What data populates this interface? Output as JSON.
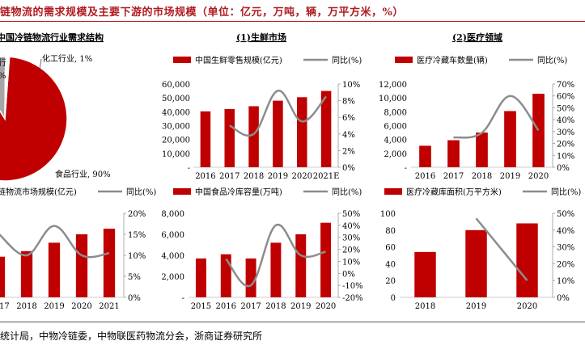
{
  "title": "链物流的需求规模及主要下游的市场规模（单位：亿元，万吨，辆，万平方米，%）",
  "source": "统计局，中物冷链委，中物联医药物流分会，浙商证券研究所",
  "colors": {
    "bar": "#c00000",
    "line": "#8c8c8c",
    "pie_small": "#a6a6a6",
    "title": "#b01c22"
  },
  "chart_data": [
    {
      "id": "pie",
      "type": "pie",
      "title": "中国冷链物流行业需求结构",
      "slices": [
        {
          "label": "食品行业, 90%",
          "value": 90,
          "color": "#c00000"
        },
        {
          "label": "化工行业, 1%",
          "value": 1,
          "color": "#ffffff"
        },
        {
          "label": "行",
          "value": 9,
          "color": "#a6a6a6"
        }
      ],
      "extra_labels": [
        "%"
      ]
    },
    {
      "id": "fresh",
      "type": "bar",
      "title": "(1)生鲜市场",
      "categories": [
        "2016",
        "2017",
        "2018",
        "2019",
        "2020",
        "2021E"
      ],
      "series": [
        {
          "name": "中国生鲜零售规模(亿元)",
          "type": "bar",
          "axis": "left",
          "values": [
            40300,
            42000,
            44000,
            48000,
            50500,
            55000
          ]
        },
        {
          "name": "同比(%)",
          "type": "line",
          "axis": "right",
          "values": [
            null,
            5,
            4,
            9.2,
            5.5,
            8.5
          ]
        }
      ],
      "ylim": [
        0,
        60000
      ],
      "yticks": [
        "-",
        "10,000",
        "20,000",
        "30,000",
        "40,000",
        "50,000",
        "60,000"
      ],
      "y2lim": [
        0,
        10
      ],
      "y2ticks": [
        "0%",
        "2%",
        "4%",
        "6%",
        "8%",
        "10%"
      ]
    },
    {
      "id": "medical",
      "type": "bar",
      "title": "(2)医疗领域",
      "categories": [
        "2016",
        "2017",
        "2018",
        "2019",
        "2020"
      ],
      "series": [
        {
          "name": "医疗冷藏车数量(辆)",
          "type": "bar",
          "axis": "left",
          "values": [
            3100,
            3900,
            5000,
            8100,
            10600
          ]
        },
        {
          "name": "同比(%)",
          "type": "line",
          "axis": "right",
          "values": [
            null,
            25,
            29,
            60,
            31
          ]
        }
      ],
      "ylim": [
        0,
        12000
      ],
      "yticks": [
        "-",
        "2,000",
        "4,000",
        "6,000",
        "8,000",
        "10,000",
        "12,000"
      ],
      "y2lim": [
        0,
        70
      ],
      "y2ticks": [
        "0%",
        "10%",
        "20%",
        "30%",
        "40%",
        "50%",
        "60%",
        "70%"
      ]
    },
    {
      "id": "coldchain",
      "type": "bar",
      "title": "",
      "categories": [
        "2017",
        "2018",
        "2019",
        "2020",
        "2021"
      ],
      "series": [
        {
          "name": "链物流市场规模(亿元)",
          "type": "bar",
          "axis": "left",
          "values": [
            2900,
            3300,
            3900,
            4500,
            4900
          ]
        },
        {
          "name": "同比(%)",
          "type": "line",
          "axis": "right",
          "values": [
            15,
            10,
            17,
            10,
            10.5
          ]
        }
      ],
      "ylim": [
        0,
        6000
      ],
      "y2lim": [
        0,
        20
      ],
      "y2ticks": [
        "0%",
        "5%",
        "10%",
        "15%",
        "20%"
      ]
    },
    {
      "id": "foodcold",
      "type": "bar",
      "title": "",
      "categories": [
        "2015",
        "2016",
        "2017",
        "2018",
        "2019",
        "2020"
      ],
      "series": [
        {
          "name": "中国食品冷库容量(万吨)",
          "type": "bar",
          "axis": "left",
          "values": [
            3700,
            4100,
            3700,
            5200,
            6000,
            7100
          ]
        },
        {
          "name": "同比(%)",
          "type": "line",
          "axis": "right",
          "values": [
            null,
            12,
            -10,
            40,
            15,
            18
          ]
        }
      ],
      "ylim": [
        0,
        8000
      ],
      "yticks": [
        "-",
        "2,000",
        "4,000",
        "6,000",
        "8,000"
      ],
      "y2lim": [
        -20,
        50
      ],
      "y2ticks": [
        "-20%",
        "-10%",
        "0%",
        "10%",
        "20%",
        "30%",
        "40%",
        "50%"
      ]
    },
    {
      "id": "medstore",
      "type": "bar",
      "title": "",
      "categories": [
        "2018",
        "2019",
        "2020"
      ],
      "series": [
        {
          "name": "医疗冷藏库面积(万平方米)",
          "type": "bar",
          "axis": "left",
          "values": [
            54,
            80,
            88
          ]
        },
        {
          "name": "同比(%)",
          "type": "line",
          "axis": "right",
          "values": [
            null,
            47,
            10
          ]
        }
      ],
      "ylim": [
        0,
        100
      ],
      "yticks": [
        "0",
        "20",
        "40",
        "60",
        "80",
        "100"
      ],
      "y2lim": [
        0,
        50
      ],
      "y2ticks": [
        "0%",
        "10%",
        "20%",
        "30%",
        "40%",
        "50%"
      ]
    }
  ]
}
